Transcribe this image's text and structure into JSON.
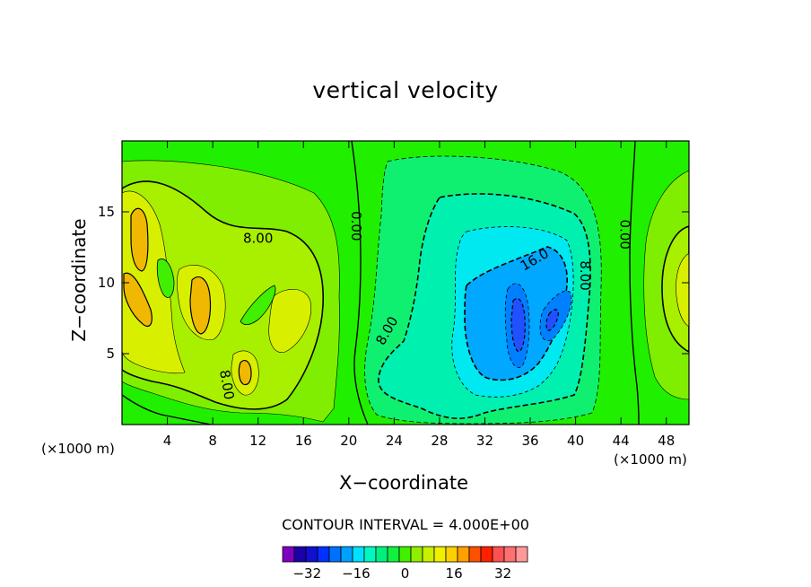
{
  "chart_data": {
    "type": "contour",
    "title": "vertical velocity",
    "xlabel": "X−coordinate",
    "ylabel": "Z−coordinate",
    "x_unit": "(×1000 m)",
    "xlim": [
      0,
      50
    ],
    "ylim": [
      0,
      20
    ],
    "x_ticks": [
      "4",
      "8",
      "12",
      "16",
      "20",
      "24",
      "28",
      "32",
      "36",
      "40",
      "44",
      "48"
    ],
    "x_tick_values": [
      4,
      8,
      12,
      16,
      20,
      24,
      28,
      32,
      36,
      40,
      44,
      48
    ],
    "y_ticks": [
      "5",
      "10",
      "15"
    ],
    "y_tick_values": [
      5,
      10,
      15
    ],
    "contour_interval_text": "CONTOUR INTERVAL = 4.000E+00",
    "contour_interval": 4,
    "contour_labels": [
      {
        "text": "8.00",
        "x": 12.0,
        "y": 13.1,
        "angle": 0
      },
      {
        "text": "0.00",
        "x": 20.6,
        "y": 14.0,
        "angle": 90
      },
      {
        "text": "8.00",
        "x": 23.4,
        "y": 6.6,
        "angle": -60
      },
      {
        "text": "8.00",
        "x": 9.2,
        "y": 2.8,
        "angle": 80
      },
      {
        "text": "16.0",
        "x": 36.4,
        "y": 11.6,
        "angle": -30
      },
      {
        "text": "8.00",
        "x": 40.8,
        "y": 10.5,
        "angle": 90
      },
      {
        "text": "0.00",
        "x": 44.3,
        "y": 13.4,
        "angle": 90
      }
    ],
    "colorbar": {
      "colors": [
        "#8000c0",
        "#1c00a8",
        "#1010d0",
        "#0030ff",
        "#0070ff",
        "#00a0ff",
        "#00e0ff",
        "#00f8c0",
        "#00f080",
        "#10f040",
        "#40f000",
        "#90ee00",
        "#c8f000",
        "#f0f000",
        "#ffd000",
        "#ffa000",
        "#ff5000",
        "#ff2000",
        "#ff5050",
        "#ff7070",
        "#ff9898"
      ],
      "tick_labels": [
        "−32",
        "−16",
        "0",
        "16",
        "32"
      ],
      "tick_values": [
        -32,
        -16,
        0,
        16,
        32
      ],
      "min": -40,
      "max": 40
    }
  }
}
